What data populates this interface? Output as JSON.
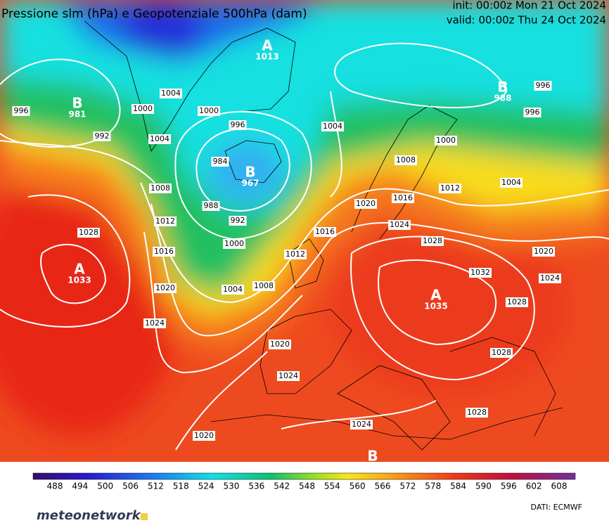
{
  "header": {
    "title": "Pressione slm (hPa) e Geopotenziale 500hPa (dam)",
    "init": "init: 00:00z Mon 21 Oct 2024",
    "valid": "valid: 00:00z Thu 24 Oct 2024"
  },
  "map": {
    "centers": [
      {
        "symbol": "A",
        "value": "1013"
      },
      {
        "symbol": "B",
        "value": "981"
      },
      {
        "symbol": "B",
        "value": "967"
      },
      {
        "symbol": "A",
        "value": "1033"
      },
      {
        "symbol": "A",
        "value": "1035"
      },
      {
        "symbol": "B",
        "value": "988"
      },
      {
        "symbol": "B"
      }
    ],
    "isobar_labels": [
      "996",
      "992",
      "1004",
      "1000",
      "1004",
      "1000",
      "996",
      "984",
      "988",
      "992",
      "1000",
      "1004",
      "1008",
      "1008",
      "1012",
      "1016",
      "1020",
      "1024",
      "1028",
      "1004",
      "1000",
      "1008",
      "1016",
      "1012",
      "1004",
      "996",
      "996",
      "1020",
      "1016",
      "1012",
      "1024",
      "1028",
      "1032",
      "1020",
      "1024",
      "1028",
      "1028",
      "1020",
      "1024",
      "1020",
      "1024",
      "1028"
    ]
  },
  "colorbar": {
    "ticks": [
      488,
      494,
      500,
      506,
      512,
      518,
      524,
      530,
      536,
      542,
      548,
      554,
      560,
      566,
      572,
      578,
      584,
      590,
      596,
      602,
      608
    ]
  },
  "footer": {
    "logo": "meteonetwork",
    "credit": "DATI:  ECMWF"
  }
}
